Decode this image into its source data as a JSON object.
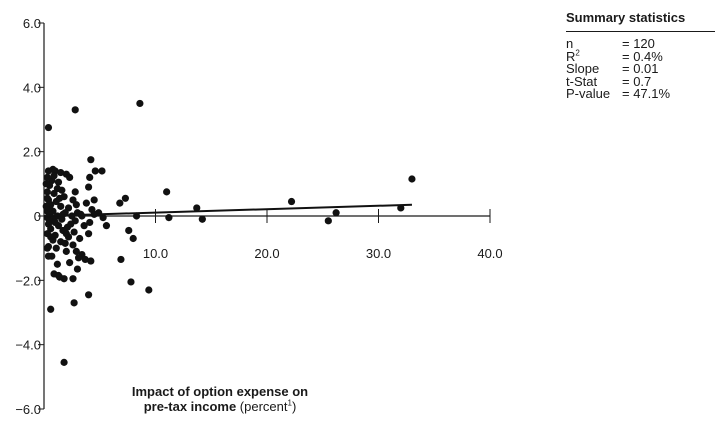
{
  "chart_data": {
    "type": "scatter",
    "xlabel_bold_line1": "Impact of option expense on",
    "xlabel_bold_line2": "pre-tax income",
    "xlabel_suffix": " (percent",
    "xlabel_footnote": "1",
    "xlabel_close": ")",
    "xlim": [
      0,
      40
    ],
    "ylim": [
      -6,
      6
    ],
    "x_ticks": [
      "10.0",
      "20.0",
      "30.0",
      "40.0"
    ],
    "y_ticks": [
      "6.0",
      "4.0",
      "2.0",
      "0",
      "−2.0",
      "−4.0",
      "−6.0"
    ],
    "x_tick_values": [
      10,
      20,
      30,
      40
    ],
    "y_tick_values": [
      6,
      4,
      2,
      0,
      -2,
      -4,
      -6
    ],
    "trendline": {
      "x": [
        0,
        33
      ],
      "y": [
        0.0,
        0.35
      ]
    },
    "points": [
      [
        0.4,
        2.75
      ],
      [
        0.6,
        -2.9
      ],
      [
        1.8,
        -4.55
      ],
      [
        2.8,
        3.3
      ],
      [
        4.2,
        1.75
      ],
      [
        4.6,
        1.4
      ],
      [
        5.2,
        1.4
      ],
      [
        8.6,
        3.5
      ],
      [
        9.4,
        -2.3
      ],
      [
        7.8,
        -2.05
      ],
      [
        4.0,
        -2.45
      ],
      [
        2.7,
        -2.7
      ],
      [
        2.6,
        -1.95
      ],
      [
        1.8,
        -1.95
      ],
      [
        1.3,
        -1.85
      ],
      [
        0.9,
        -1.8
      ],
      [
        2.0,
        1.3
      ],
      [
        2.3,
        1.2
      ],
      [
        4.1,
        1.2
      ],
      [
        4.0,
        0.9
      ],
      [
        0.4,
        1.4
      ],
      [
        0.8,
        1.45
      ],
      [
        1.0,
        1.4
      ],
      [
        0.3,
        1.2
      ],
      [
        0.7,
        1.1
      ],
      [
        1.3,
        1.05
      ],
      [
        0.5,
        0.95
      ],
      [
        1.2,
        0.85
      ],
      [
        1.6,
        0.8
      ],
      [
        2.8,
        0.75
      ],
      [
        0.3,
        0.75
      ],
      [
        0.9,
        0.7
      ],
      [
        1.8,
        0.6
      ],
      [
        2.6,
        0.5
      ],
      [
        4.5,
        0.5
      ],
      [
        0.4,
        0.5
      ],
      [
        1.1,
        0.45
      ],
      [
        3.8,
        0.4
      ],
      [
        0.6,
        0.35
      ],
      [
        1.5,
        0.3
      ],
      [
        2.2,
        0.25
      ],
      [
        4.3,
        0.2
      ],
      [
        0.3,
        0.15
      ],
      [
        0.8,
        0.15
      ],
      [
        1.9,
        0.1
      ],
      [
        3.0,
        0.1
      ],
      [
        4.9,
        0.1
      ],
      [
        0.5,
        0.05
      ],
      [
        1.2,
        0.0
      ],
      [
        2.5,
        0.0
      ],
      [
        3.4,
        0.0
      ],
      [
        0.3,
        -0.05
      ],
      [
        0.9,
        -0.1
      ],
      [
        1.6,
        -0.1
      ],
      [
        2.8,
        -0.15
      ],
      [
        4.1,
        -0.2
      ],
      [
        0.4,
        -0.25
      ],
      [
        1.3,
        -0.3
      ],
      [
        2.1,
        -0.35
      ],
      [
        3.6,
        -0.3
      ],
      [
        5.6,
        -0.3
      ],
      [
        0.6,
        -0.4
      ],
      [
        1.7,
        -0.45
      ],
      [
        2.7,
        -0.5
      ],
      [
        4.0,
        -0.55
      ],
      [
        0.3,
        -0.55
      ],
      [
        1.0,
        -0.6
      ],
      [
        2.2,
        -0.65
      ],
      [
        3.2,
        -0.7
      ],
      [
        0.8,
        -0.75
      ],
      [
        1.5,
        -0.8
      ],
      [
        2.6,
        -0.9
      ],
      [
        0.4,
        -0.95
      ],
      [
        1.1,
        -1.0
      ],
      [
        2.0,
        -1.1
      ],
      [
        3.4,
        -1.2
      ],
      [
        0.7,
        -1.25
      ],
      [
        3.1,
        -1.3
      ],
      [
        4.2,
        -1.4
      ],
      [
        3.7,
        -1.35
      ],
      [
        2.3,
        -1.45
      ],
      [
        3.0,
        -1.65
      ],
      [
        1.4,
        -1.9
      ],
      [
        0.5,
        -0.15
      ],
      [
        1.9,
        -0.85
      ],
      [
        2.9,
        0.35
      ],
      [
        6.8,
        0.4
      ],
      [
        7.3,
        0.55
      ],
      [
        8.3,
        0.0
      ],
      [
        7.6,
        -0.45
      ],
      [
        8.0,
        -0.7
      ],
      [
        6.9,
        -1.35
      ],
      [
        11.0,
        0.75
      ],
      [
        11.2,
        -0.05
      ],
      [
        13.7,
        0.25
      ],
      [
        14.2,
        -0.1
      ],
      [
        22.2,
        0.45
      ],
      [
        25.5,
        -0.15
      ],
      [
        26.2,
        0.1
      ],
      [
        32.0,
        0.25
      ],
      [
        33.0,
        1.15
      ],
      [
        0.3,
        -1.0
      ],
      [
        0.5,
        0.25
      ],
      [
        1.0,
        -0.2
      ],
      [
        1.7,
        0.05
      ],
      [
        2.4,
        -0.25
      ],
      [
        0.3,
        0.55
      ],
      [
        0.6,
        -0.65
      ],
      [
        1.4,
        0.55
      ],
      [
        2.0,
        -0.55
      ],
      [
        3.3,
        0.05
      ],
      [
        0.2,
        1.0
      ],
      [
        0.9,
        1.25
      ],
      [
        1.5,
        1.35
      ],
      [
        0.4,
        -1.25
      ],
      [
        1.2,
        -1.5
      ],
      [
        0.2,
        0.3
      ],
      [
        4.5,
        0.05
      ],
      [
        5.3,
        -0.05
      ],
      [
        2.9,
        -1.1
      ]
    ]
  },
  "stats": {
    "title": "Summary statistics",
    "rows": [
      {
        "key": "n",
        "value": "= 120"
      },
      {
        "key": "R",
        "key_sup": "2",
        "value": "= 0.4%"
      },
      {
        "key": "Slope",
        "value": "= 0.01"
      },
      {
        "key": "t-Stat",
        "value": "= 0.7"
      },
      {
        "key": "P-value",
        "value": "= 47.1%"
      }
    ]
  }
}
